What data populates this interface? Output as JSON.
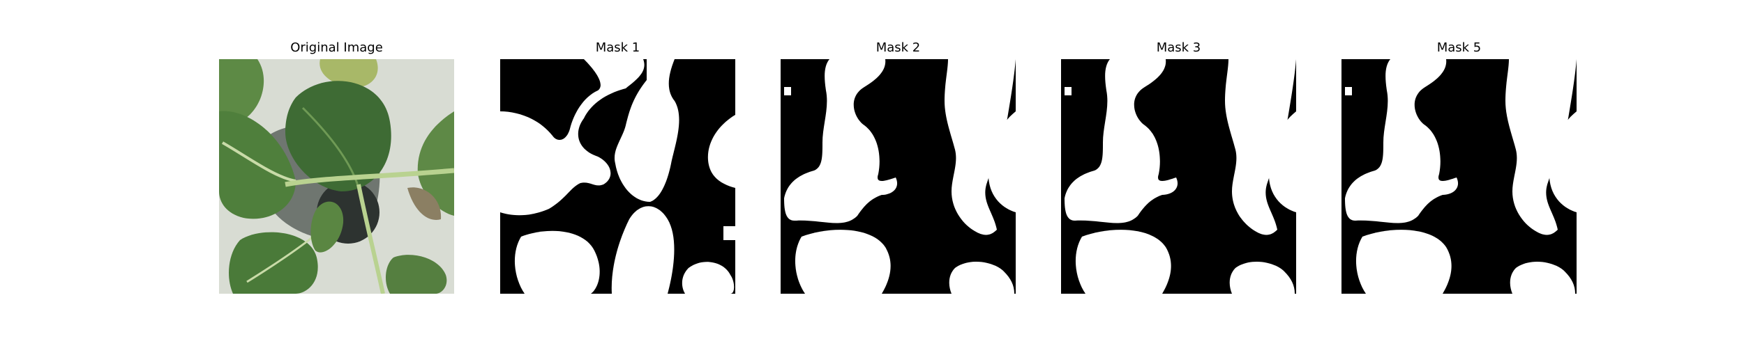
{
  "figure": {
    "panels": [
      {
        "title": "Original Image",
        "kind": "photo"
      },
      {
        "title": "Mask 1",
        "kind": "mask"
      },
      {
        "title": "Mask 2",
        "kind": "mask"
      },
      {
        "title": "Mask 3",
        "kind": "mask"
      },
      {
        "title": "Mask 5",
        "kind": "mask"
      }
    ]
  },
  "colors": {
    "mask_foreground": "#ffffff",
    "mask_background": "#000000",
    "leaf_green": "#4f7a3c",
    "leaf_dark": "#2f5a2a",
    "stem": "#b7cf8e",
    "background_wall": "#d9ddd5"
  }
}
